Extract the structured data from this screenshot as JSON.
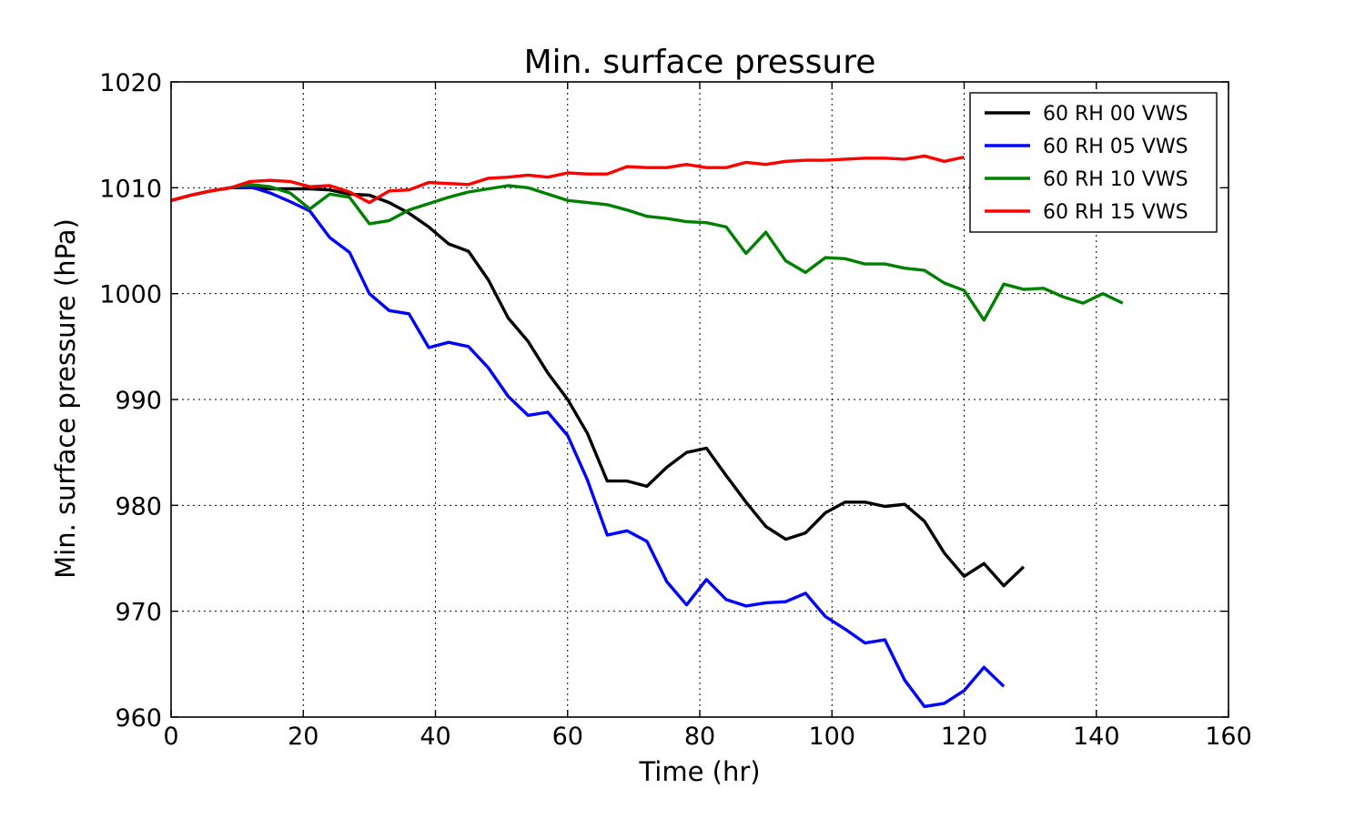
{
  "chart_data": {
    "type": "line",
    "title": "Min. surface pressure",
    "xlabel": "Time (hr)",
    "ylabel": "Min. surface pressure (hPa)",
    "xlim": [
      0,
      160
    ],
    "ylim": [
      960,
      1020
    ],
    "xticks": [
      0,
      20,
      40,
      60,
      80,
      100,
      120,
      140,
      160
    ],
    "yticks": [
      960,
      970,
      980,
      990,
      1000,
      1010,
      1020
    ],
    "grid": true,
    "legend_position": "top-right",
    "series": [
      {
        "name": "60 RH 00 VWS",
        "color": "#000000",
        "x": [
          0,
          3,
          6,
          9,
          12,
          15,
          18,
          21,
          24,
          27,
          30,
          33,
          36,
          39,
          42,
          45,
          48,
          51,
          54,
          57,
          60,
          63,
          66,
          69,
          72,
          75,
          78,
          81,
          84,
          87,
          90,
          93,
          96,
          99,
          102,
          105,
          108,
          111,
          114,
          117,
          120,
          123,
          126,
          129
        ],
        "y": [
          1008.8,
          1009.3,
          1009.7,
          1010.0,
          1010.0,
          1009.9,
          1009.9,
          1009.9,
          1009.8,
          1009.4,
          1009.3,
          1008.6,
          1007.6,
          1006.3,
          1004.7,
          1004.0,
          1001.3,
          997.7,
          995.5,
          992.5,
          990.0,
          986.8,
          982.3,
          982.3,
          981.8,
          983.6,
          985.0,
          985.4,
          982.8,
          980.3,
          978.0,
          976.8,
          977.4,
          979.3,
          980.3,
          980.3,
          979.9,
          980.1,
          978.5,
          975.5,
          973.3,
          974.5,
          972.4,
          974.2
        ]
      },
      {
        "name": "60 RH 05 VWS",
        "color": "#0000ff",
        "x": [
          0,
          3,
          6,
          9,
          12,
          15,
          18,
          21,
          24,
          27,
          30,
          33,
          36,
          39,
          42,
          45,
          48,
          51,
          54,
          57,
          60,
          63,
          66,
          69,
          72,
          75,
          78,
          81,
          84,
          87,
          90,
          93,
          96,
          99,
          102,
          105,
          108,
          111,
          114,
          117,
          120,
          123,
          126
        ],
        "y": [
          1008.8,
          1009.3,
          1009.7,
          1010.0,
          1010.1,
          1009.5,
          1008.7,
          1007.8,
          1005.3,
          1003.9,
          1000.0,
          998.4,
          998.1,
          994.9,
          995.4,
          995.0,
          993.0,
          990.3,
          988.5,
          988.8,
          986.6,
          982.4,
          977.2,
          977.6,
          976.6,
          972.8,
          970.6,
          973.0,
          971.1,
          970.5,
          970.8,
          970.9,
          971.7,
          969.5,
          968.3,
          967.0,
          967.3,
          963.5,
          961.0,
          961.3,
          962.5,
          964.7,
          962.9
        ]
      },
      {
        "name": "60 RH 10 VWS",
        "color": "#008000",
        "x": [
          0,
          3,
          6,
          9,
          12,
          15,
          18,
          21,
          24,
          27,
          30,
          33,
          36,
          39,
          42,
          45,
          48,
          51,
          54,
          57,
          60,
          63,
          66,
          69,
          72,
          75,
          78,
          81,
          84,
          87,
          90,
          93,
          96,
          99,
          102,
          105,
          108,
          111,
          114,
          117,
          120,
          123,
          126,
          129,
          132,
          135,
          138,
          141,
          144
        ],
        "y": [
          1008.8,
          1009.3,
          1009.7,
          1010.0,
          1010.3,
          1010.1,
          1009.5,
          1008.0,
          1009.4,
          1009.1,
          1006.6,
          1006.9,
          1007.9,
          1008.5,
          1009.1,
          1009.6,
          1009.9,
          1010.2,
          1010.0,
          1009.4,
          1008.8,
          1008.6,
          1008.4,
          1007.9,
          1007.3,
          1007.1,
          1006.8,
          1006.7,
          1006.3,
          1003.8,
          1005.8,
          1003.1,
          1002.0,
          1003.4,
          1003.3,
          1002.8,
          1002.8,
          1002.4,
          1002.2,
          1001.0,
          1000.3,
          997.5,
          1000.9,
          1000.4,
          1000.5,
          999.7,
          999.1,
          1000.0,
          999.1
        ]
      },
      {
        "name": "60 RH 15 VWS",
        "color": "#ff0000",
        "x": [
          0,
          3,
          6,
          9,
          12,
          15,
          18,
          21,
          24,
          27,
          30,
          33,
          36,
          39,
          42,
          45,
          48,
          51,
          54,
          57,
          60,
          63,
          66,
          69,
          72,
          75,
          78,
          81,
          84,
          87,
          90,
          93,
          96,
          99,
          102,
          105,
          108,
          111,
          114,
          117,
          120
        ],
        "y": [
          1008.8,
          1009.3,
          1009.7,
          1010.0,
          1010.6,
          1010.7,
          1010.6,
          1010.1,
          1010.2,
          1009.6,
          1008.6,
          1009.7,
          1009.8,
          1010.5,
          1010.4,
          1010.3,
          1010.9,
          1011.0,
          1011.2,
          1011.0,
          1011.4,
          1011.3,
          1011.3,
          1012.0,
          1011.9,
          1011.9,
          1012.2,
          1011.9,
          1011.9,
          1012.4,
          1012.2,
          1012.5,
          1012.6,
          1012.6,
          1012.7,
          1012.8,
          1012.8,
          1012.7,
          1013.0,
          1012.5,
          1012.9
        ]
      }
    ]
  }
}
